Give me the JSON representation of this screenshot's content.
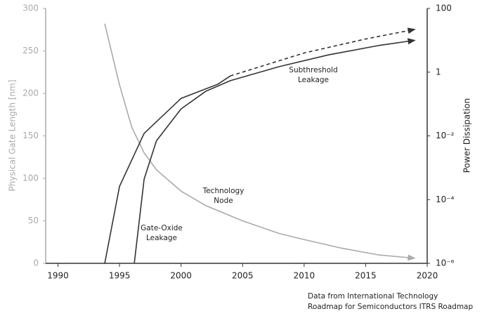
{
  "chart_data": {
    "type": "line",
    "ylabel": "Physical Gate Length [nm]",
    "y2label": "Power Dissipation",
    "xlim": [
      1989,
      2020
    ],
    "xticks": [
      1990,
      1995,
      2000,
      2005,
      2010,
      2015,
      2020
    ],
    "ylim": [
      0,
      300
    ],
    "yticks": [
      0,
      50,
      100,
      150,
      200,
      250,
      300
    ],
    "y2lim": [
      1e-06,
      100
    ],
    "y2log": true,
    "y2ticks": [
      {
        "value": 1e-06,
        "label": "10⁻⁶"
      },
      {
        "value": 0.0001,
        "label": "10⁻⁴"
      },
      {
        "value": 0.01,
        "label": "10⁻²"
      },
      1,
      100
    ],
    "series": [
      {
        "color": "#aaaaaa",
        "style": "solid",
        "arrow": true,
        "x": [
          1993.8,
          1995,
          1996,
          1997,
          1998,
          2000,
          2002,
          2005,
          2008,
          2010,
          2013,
          2016,
          2019
        ],
        "values": [
          282,
          210,
          160,
          130,
          110,
          85,
          68,
          50,
          35,
          28,
          18,
          10,
          6
        ]
      },
      {
        "color": "#333333",
        "style": "solid",
        "arrow": true,
        "axis": "y2",
        "x": [
          1996.2,
          1997,
          1998,
          2000,
          2002,
          2004,
          2008,
          2012,
          2016,
          2019
        ],
        "values": [
          1e-06,
          0.00044,
          0.007,
          0.07,
          0.25,
          0.54,
          1.5,
          3.5,
          6.8,
          10
        ]
      },
      {
        "color": "#333333",
        "style": "solid",
        "arrow": false,
        "axis": "y2",
        "x": [
          1993.8,
          1995,
          1997,
          2000,
          2003,
          2004
        ],
        "values": [
          1e-06,
          0.00026,
          0.012,
          0.15,
          0.42,
          0.76
        ]
      },
      {
        "color": "#333333",
        "style": "dashed",
        "arrow": true,
        "axis": "y2",
        "x": [
          2004,
          2010,
          2015,
          2019
        ],
        "values": [
          0.76,
          4,
          11,
          22
        ]
      }
    ],
    "annotations": [
      {
        "lines": [
          "Subthreshold",
          "Leakage"
        ]
      },
      {
        "lines": [
          "Technology",
          "Node"
        ]
      },
      {
        "lines": [
          "Gate-Oxide",
          "Leakage"
        ]
      }
    ],
    "note": [
      "Data from International Technology",
      "Roadmap for Semiconductors ITRS Roadmap"
    ]
  }
}
